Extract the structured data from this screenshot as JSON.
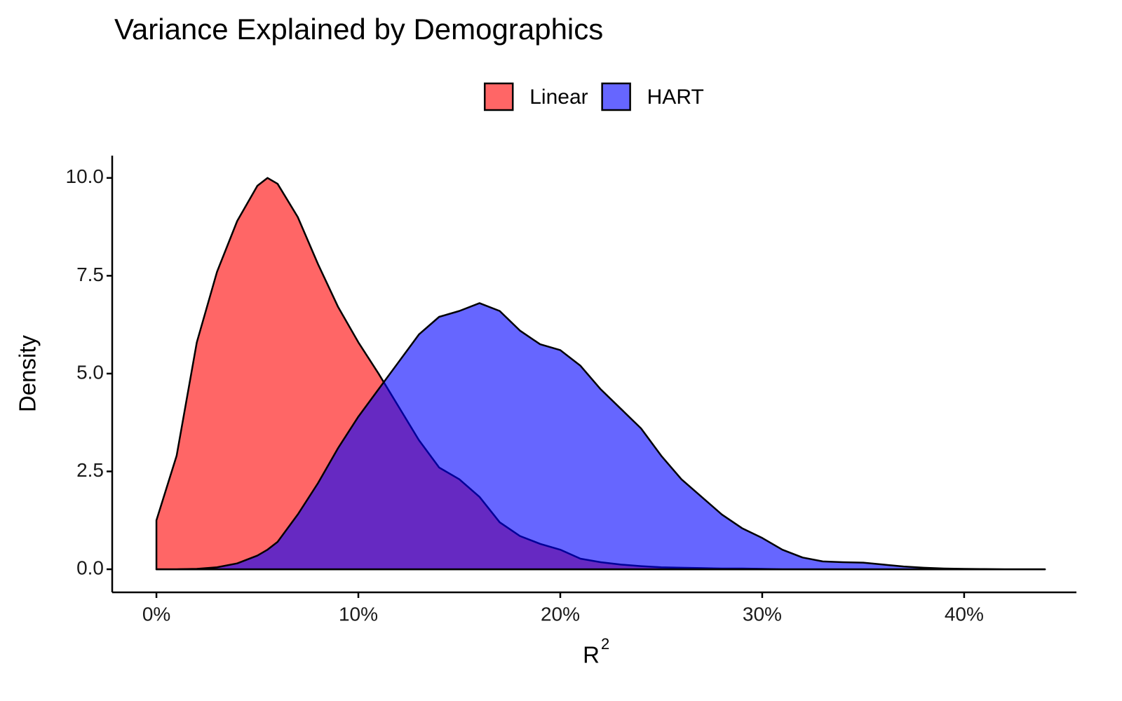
{
  "chart_data": {
    "type": "area",
    "title": "Variance Explained by Demographics",
    "x_label": {
      "base": "R",
      "superscript": "2"
    },
    "y_label": "Density",
    "x": [
      0,
      1,
      2,
      3,
      4,
      5,
      5.5,
      6,
      7,
      8,
      9,
      10,
      11,
      12,
      13,
      14,
      15,
      16,
      17,
      18,
      19,
      20,
      21,
      22,
      23,
      24,
      25,
      26,
      27,
      28,
      29,
      30,
      31,
      32,
      33,
      34,
      35,
      36,
      37,
      38,
      39,
      40,
      41,
      42,
      43,
      44
    ],
    "series": [
      {
        "name": "Linear",
        "color": "#ff0000",
        "values": [
          1.25,
          2.9,
          5.8,
          7.6,
          8.9,
          9.8,
          10.0,
          9.85,
          9.0,
          7.8,
          6.7,
          5.8,
          5.0,
          4.15,
          3.3,
          2.6,
          2.3,
          1.85,
          1.2,
          0.85,
          0.65,
          0.5,
          0.27,
          0.18,
          0.12,
          0.08,
          0.05,
          0.04,
          0.03,
          0.02,
          0.02,
          0.01,
          0,
          0,
          0,
          0,
          0,
          0,
          0,
          0,
          0,
          0,
          0,
          0,
          0,
          0
        ]
      },
      {
        "name": "HART",
        "color": "#0000ff",
        "values": [
          0,
          0,
          0.01,
          0.05,
          0.15,
          0.35,
          0.5,
          0.7,
          1.4,
          2.2,
          3.1,
          3.9,
          4.6,
          5.3,
          6.0,
          6.45,
          6.6,
          6.8,
          6.6,
          6.1,
          5.75,
          5.6,
          5.2,
          4.6,
          4.1,
          3.6,
          2.9,
          2.3,
          1.85,
          1.4,
          1.05,
          0.8,
          0.5,
          0.3,
          0.2,
          0.18,
          0.17,
          0.12,
          0.07,
          0.04,
          0.02,
          0.01,
          0.005,
          0,
          0,
          0
        ]
      }
    ],
    "alpha": 0.6,
    "outline_color": "#000000",
    "legend_position": "top",
    "grid": false,
    "xlim": [
      -2.19,
      45.56
    ],
    "xticks": [
      {
        "value": 0,
        "label": "0%"
      },
      {
        "value": 10,
        "label": "10%"
      },
      {
        "value": 20,
        "label": "20%"
      },
      {
        "value": 30,
        "label": "30%"
      },
      {
        "value": 40,
        "label": "40%"
      }
    ],
    "ylim": [
      -0.59,
      10.57
    ],
    "yticks": [
      {
        "value": 0,
        "label": "0.0"
      },
      2.5,
      {
        "value": 5,
        "label": "5.0"
      },
      7.5,
      {
        "value": 10,
        "label": "10.0"
      }
    ]
  }
}
